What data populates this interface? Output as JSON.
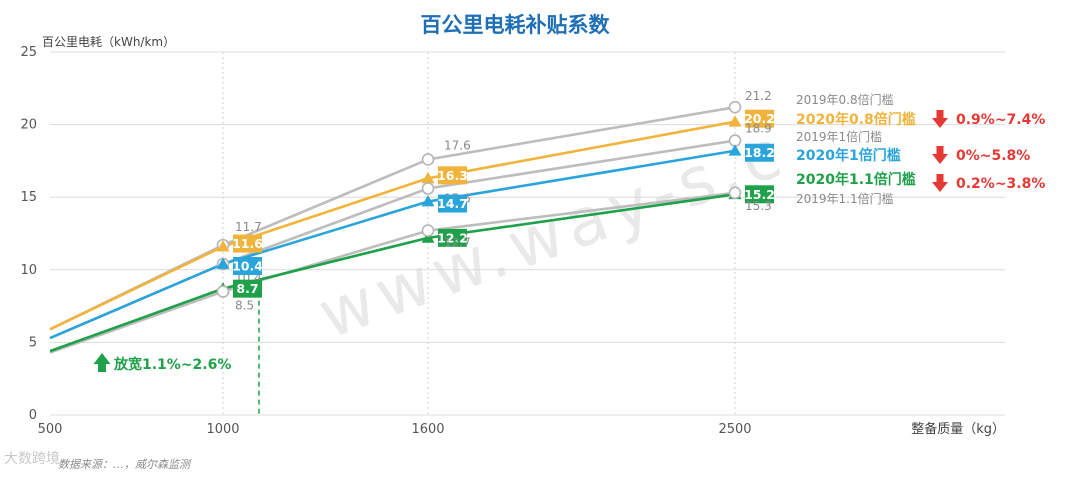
{
  "chart_data": {
    "type": "line",
    "title": "百公里电耗补贴系数",
    "ylabel": "百公里电耗（kWh/km）",
    "xlabel": "整备质量（kg）",
    "ylim": [
      0,
      25
    ],
    "yticks": [
      0,
      5,
      10,
      15,
      20,
      25
    ],
    "xticks": [
      500,
      1000,
      1600,
      2500
    ],
    "grid": true,
    "series": [
      {
        "name": "2019年0.8倍门槛",
        "x": [
          500,
          1000,
          1600,
          2500
        ],
        "y": [
          5.9,
          11.7,
          17.6,
          21.2
        ],
        "color": "#bdbdbd",
        "marker": "circle",
        "highlight": false,
        "labels": [
          "",
          "11.7",
          "17.6",
          "21.2"
        ]
      },
      {
        "name": "2020年0.8倍门槛",
        "x": [
          500,
          1000,
          1600,
          2500
        ],
        "y": [
          5.9,
          11.6,
          16.3,
          20.2
        ],
        "color": "#f0b43c",
        "marker": "triangle",
        "highlight": true,
        "labels": [
          "",
          "11.6",
          "16.3",
          "20.2"
        ]
      },
      {
        "name": "2019年1倍门槛",
        "x": [
          500,
          1000,
          1600,
          2500
        ],
        "y": [
          5.3,
          10.4,
          15.6,
          18.9
        ],
        "color": "#bdbdbd",
        "marker": "circle",
        "highlight": false,
        "labels": [
          "",
          "10.4",
          "15.6",
          "18.9"
        ]
      },
      {
        "name": "2020年1倍门槛",
        "x": [
          500,
          1000,
          1600,
          2500
        ],
        "y": [
          5.3,
          10.4,
          14.7,
          18.2
        ],
        "color": "#2aa5dc",
        "marker": "triangle",
        "highlight": true,
        "labels": [
          "",
          "10.4",
          "14.7",
          "18.2"
        ]
      },
      {
        "name": "2020年1.1倍门槛",
        "x": [
          500,
          1000,
          1600,
          2500
        ],
        "y": [
          4.4,
          8.7,
          12.2,
          15.2
        ],
        "color": "#1fa04a",
        "marker": "triangle",
        "highlight": true,
        "labels": [
          "",
          "8.7",
          "12.2",
          "15.2"
        ]
      },
      {
        "name": "2019年1.1倍门槛",
        "x": [
          500,
          1000,
          1600,
          2500
        ],
        "y": [
          4.3,
          8.5,
          12.7,
          15.3
        ],
        "color": "#bdbdbd",
        "marker": "circle",
        "highlight": false,
        "labels": [
          "",
          "8.5",
          "12.7",
          "15.3"
        ]
      }
    ],
    "annotations": [
      {
        "text": "0.9%~7.4%",
        "series": "2020年0.8倍门槛",
        "color": "#e53935"
      },
      {
        "text": "0%~5.8%",
        "series": "2020年1倍门槛",
        "color": "#e53935"
      },
      {
        "text": "0.2%~3.8%",
        "series": "2020年1.1倍门槛",
        "color": "#e53935"
      },
      {
        "text": "放宽1.1%~2.6%",
        "color": "#1fa04a"
      }
    ]
  },
  "watermark": "www.way-s.c",
  "source": "数据来源：…，威尔森监测",
  "corner_mark": "大数跨境"
}
